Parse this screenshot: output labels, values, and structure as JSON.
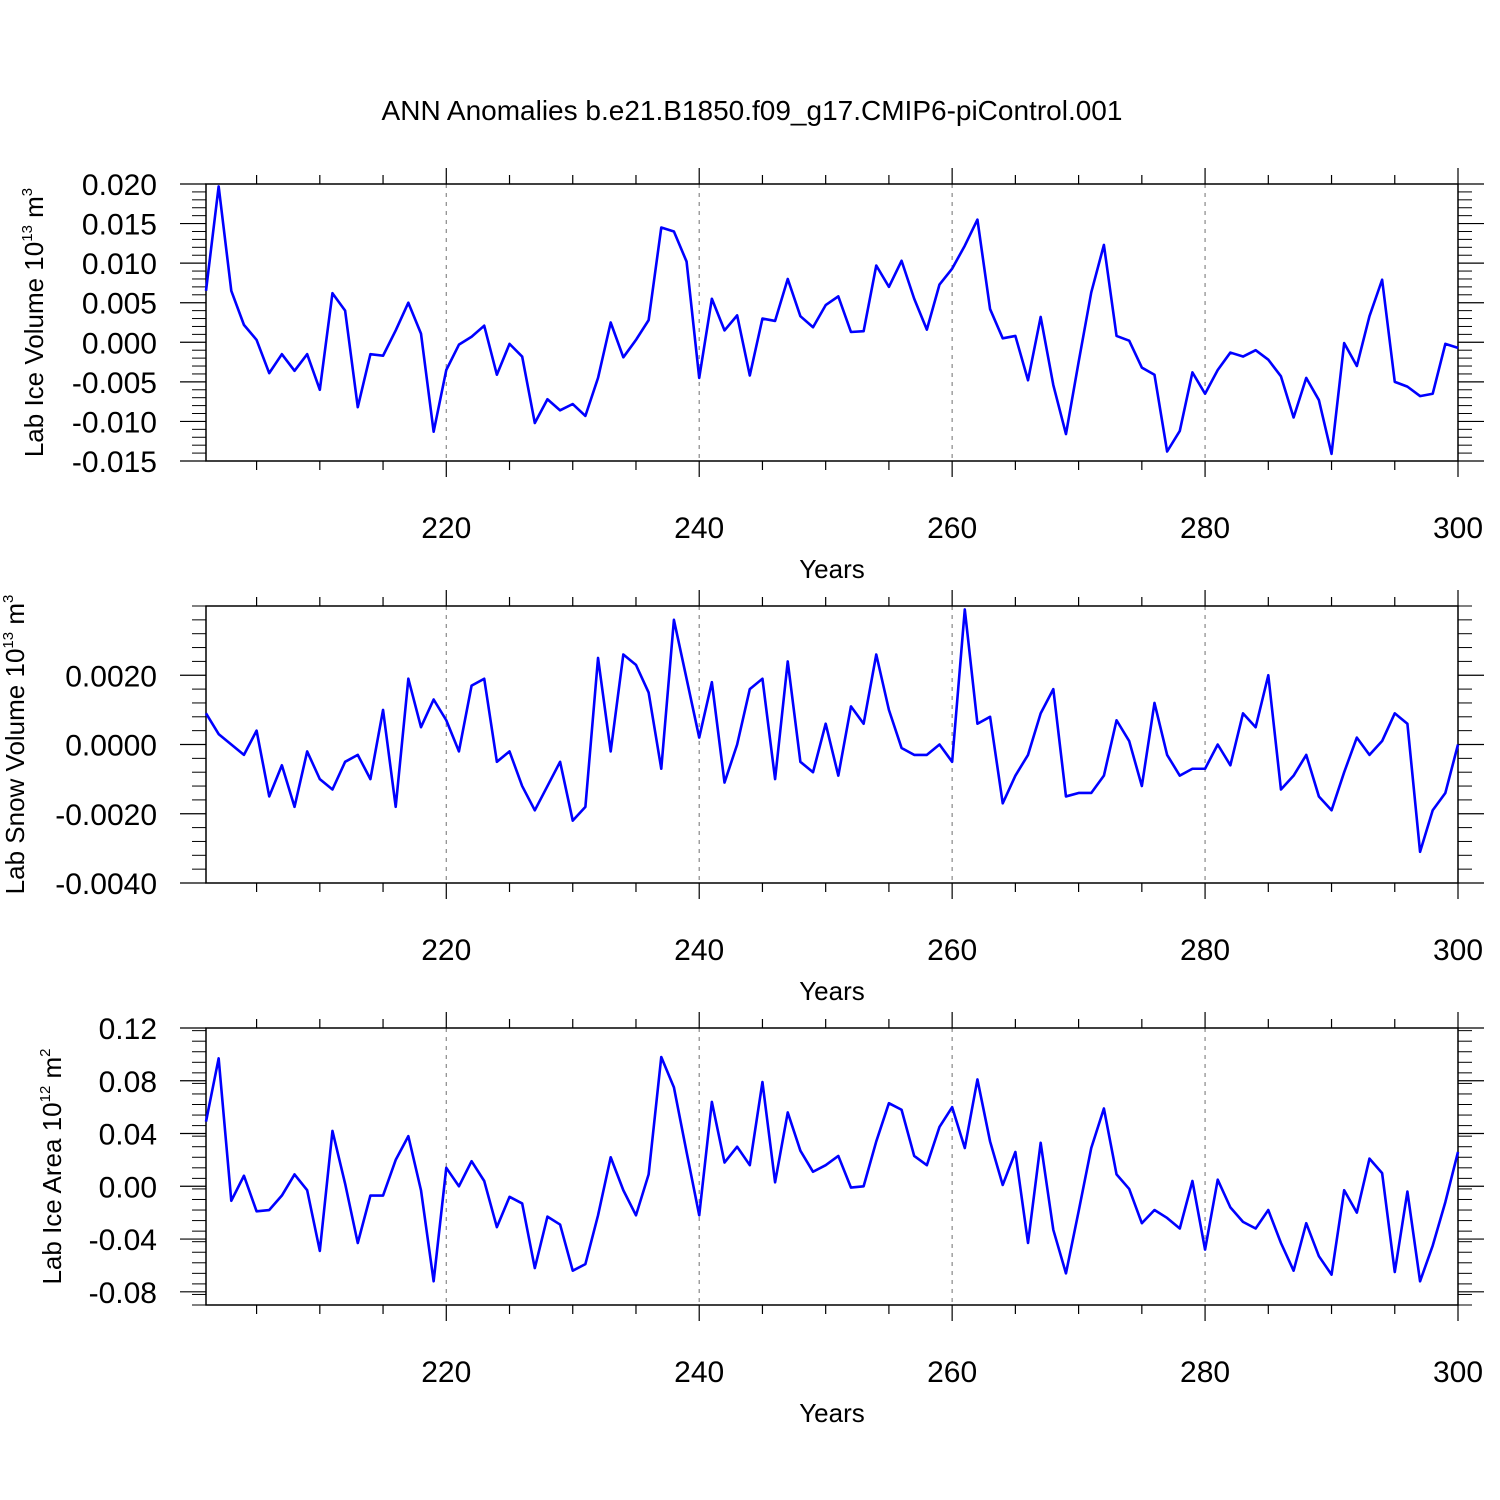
{
  "chart_data": {
    "title": "ANN Anomalies b.e21.B1850.f09_g17.CMIP6-piControl.001",
    "type": "line",
    "x": [
      201,
      202,
      203,
      204,
      205,
      206,
      207,
      208,
      209,
      210,
      211,
      212,
      213,
      214,
      215,
      216,
      217,
      218,
      219,
      220,
      221,
      222,
      223,
      224,
      225,
      226,
      227,
      228,
      229,
      230,
      231,
      232,
      233,
      234,
      235,
      236,
      237,
      238,
      239,
      240,
      241,
      242,
      243,
      244,
      245,
      246,
      247,
      248,
      249,
      250,
      251,
      252,
      253,
      254,
      255,
      256,
      257,
      258,
      259,
      260,
      261,
      262,
      263,
      264,
      265,
      266,
      267,
      268,
      269,
      270,
      271,
      272,
      273,
      274,
      275,
      276,
      277,
      278,
      279,
      280,
      281,
      282,
      283,
      284,
      285,
      286,
      287,
      288,
      289,
      290,
      291,
      292,
      293,
      294,
      295,
      296,
      297,
      298,
      299,
      300
    ],
    "xlim": [
      201,
      300
    ],
    "xticks": [
      220,
      240,
      260,
      280,
      300
    ],
    "series_color": "#0000ff",
    "panels": [
      {
        "name": "lab-ice-volume",
        "ylabel_main": "Lab Ice Volume 10",
        "ylabel_exp": "13",
        "ylabel_unit": " m",
        "ylabel_unit_exp": "3",
        "xlabel": "Years",
        "ylim": [
          -0.015,
          0.02
        ],
        "yticks": [
          "0.020",
          "0.015",
          "0.010",
          "0.005",
          "0.000",
          "-0.005",
          "-0.010",
          "-0.015"
        ],
        "ytick_values": [
          0.02,
          0.015,
          0.01,
          0.005,
          0.0,
          -0.005,
          -0.01,
          -0.015
        ],
        "values": [
          0.0065,
          0.0197,
          0.0065,
          0.0022,
          0.0003,
          -0.0039,
          -0.0015,
          -0.0036,
          -0.0015,
          -0.006,
          0.0062,
          0.004,
          -0.0082,
          -0.0015,
          -0.0017,
          0.0015,
          0.005,
          0.0011,
          -0.0113,
          -0.0035,
          -0.0003,
          0.0007,
          0.0021,
          -0.0041,
          -0.0002,
          -0.0018,
          -0.0102,
          -0.0072,
          -0.0086,
          -0.0078,
          -0.0093,
          -0.0045,
          0.0025,
          -0.0019,
          0.0003,
          0.0028,
          0.0145,
          0.014,
          0.0102,
          -0.0045,
          0.0055,
          0.0015,
          0.0034,
          -0.0042,
          0.003,
          0.0027,
          0.008,
          0.0033,
          0.0019,
          0.0047,
          0.0058,
          0.0013,
          0.0014,
          0.0097,
          0.007,
          0.0103,
          0.0055,
          0.0016,
          0.0073,
          0.0093,
          0.0122,
          0.0155,
          0.0042,
          0.0005,
          0.0008,
          -0.0048,
          0.0032,
          -0.0054,
          -0.0116,
          -0.0025,
          0.0063,
          0.0123,
          0.0008,
          0.0002,
          -0.0032,
          -0.0041,
          -0.0138,
          -0.0112,
          -0.0038,
          -0.0065,
          -0.0035,
          -0.0013,
          -0.0018,
          -0.001,
          -0.0022,
          -0.0043,
          -0.0095,
          -0.0045,
          -0.0073,
          -0.0141,
          -0.0001,
          -0.003,
          0.0033,
          0.0079,
          -0.005,
          -0.0056,
          -0.0068,
          -0.0065,
          -0.0002,
          -0.0007
        ]
      },
      {
        "name": "lab-snow-volume",
        "ylabel_main": "Lab Snow Volume 10",
        "ylabel_exp": "13",
        "ylabel_unit": " m",
        "ylabel_unit_exp": "3",
        "xlabel": "Years",
        "ylim": [
          -0.004,
          0.004
        ],
        "yticks": [
          "0.0020",
          "0.0000",
          "-0.0020",
          "-0.0040"
        ],
        "ytick_values": [
          0.002,
          0.0,
          -0.002,
          -0.004
        ],
        "values": [
          0.0009,
          0.0003,
          0.0,
          -0.0003,
          0.0004,
          -0.0015,
          -0.0006,
          -0.0018,
          -0.0002,
          -0.001,
          -0.0013,
          -0.0005,
          -0.0003,
          -0.001,
          0.001,
          -0.0018,
          0.0019,
          0.0005,
          0.0013,
          0.0007,
          -0.0002,
          0.0017,
          0.0019,
          -0.0005,
          -0.0002,
          -0.0012,
          -0.0019,
          -0.0012,
          -0.0005,
          -0.0022,
          -0.0018,
          0.0025,
          -0.0002,
          0.0026,
          0.0023,
          0.0015,
          -0.0007,
          0.0036,
          0.0019,
          0.0002,
          0.0018,
          -0.0011,
          0.0,
          0.0016,
          0.0019,
          -0.001,
          0.0024,
          -0.0005,
          -0.0008,
          0.0006,
          -0.0009,
          0.0011,
          0.0006,
          0.0026,
          0.001,
          -0.0001,
          -0.0003,
          -0.0003,
          0.0,
          -0.0005,
          0.0039,
          0.0006,
          0.0008,
          -0.0017,
          -0.0009,
          -0.0003,
          0.0009,
          0.0016,
          -0.0015,
          -0.0014,
          -0.0014,
          -0.0009,
          0.0007,
          0.0001,
          -0.0012,
          0.0012,
          -0.0003,
          -0.0009,
          -0.0007,
          -0.0007,
          0.0,
          -0.0006,
          0.0009,
          0.0005,
          0.002,
          -0.0013,
          -0.0009,
          -0.0003,
          -0.0015,
          -0.0019,
          -0.0008,
          0.0002,
          -0.0003,
          0.0001,
          0.0009,
          0.0006,
          -0.0031,
          -0.0019,
          -0.0014,
          0.0
        ]
      },
      {
        "name": "lab-ice-area",
        "ylabel_main": "Lab Ice Area 10",
        "ylabel_exp": "12",
        "ylabel_unit": " m",
        "ylabel_unit_exp": "2",
        "xlabel": "Years",
        "ylim": [
          -0.09,
          0.12
        ],
        "yticks": [
          "0.12",
          "0.08",
          "0.04",
          "0.00",
          "-0.04",
          "-0.08"
        ],
        "ytick_values": [
          0.12,
          0.08,
          0.04,
          0.0,
          -0.04,
          -0.08
        ],
        "values": [
          0.049,
          0.097,
          -0.011,
          0.008,
          -0.019,
          -0.018,
          -0.007,
          0.009,
          -0.003,
          -0.049,
          0.042,
          0.002,
          -0.043,
          -0.007,
          -0.007,
          0.02,
          0.038,
          -0.003,
          -0.072,
          0.014,
          0.0,
          0.019,
          0.004,
          -0.031,
          -0.008,
          -0.013,
          -0.062,
          -0.023,
          -0.029,
          -0.064,
          -0.059,
          -0.022,
          0.022,
          -0.003,
          -0.022,
          0.009,
          0.098,
          0.075,
          0.026,
          -0.022,
          0.064,
          0.018,
          0.03,
          0.016,
          0.079,
          0.003,
          0.056,
          0.027,
          0.011,
          0.016,
          0.023,
          -0.001,
          0.0,
          0.034,
          0.063,
          0.058,
          0.023,
          0.016,
          0.045,
          0.06,
          0.029,
          0.081,
          0.034,
          0.001,
          0.026,
          -0.043,
          0.033,
          -0.033,
          -0.066,
          -0.019,
          0.029,
          0.059,
          0.009,
          -0.002,
          -0.028,
          -0.018,
          -0.024,
          -0.032,
          0.004,
          -0.048,
          0.005,
          -0.016,
          -0.027,
          -0.032,
          -0.018,
          -0.043,
          -0.064,
          -0.028,
          -0.053,
          -0.067,
          -0.003,
          -0.02,
          0.021,
          0.01,
          -0.065,
          -0.004,
          -0.072,
          -0.045,
          -0.012,
          0.026
        ]
      }
    ]
  }
}
